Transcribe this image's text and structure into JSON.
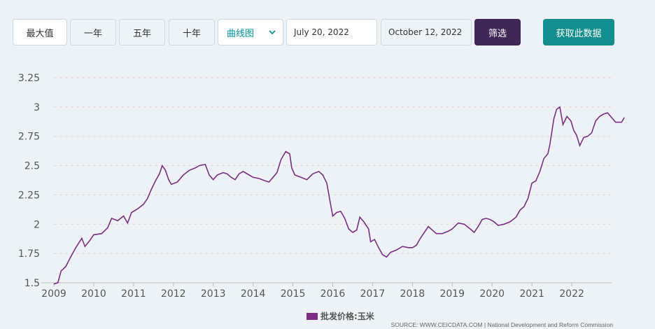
{
  "toolbar": {
    "range_buttons": [
      "最大值",
      "一年",
      "五年",
      "十年"
    ],
    "chart_type_select": "曲线图",
    "start_date": "July 20, 2022",
    "end_date": "October 12, 2022",
    "filter_label": "筛选",
    "get_data_label": "获取此数据"
  },
  "source": "SOURCE: WWW.CEICDATA.COM | National Development and Reform Commission",
  "colors": {
    "line": "#7b2e83",
    "grid": "#e6cfd8",
    "axis_text": "#555555"
  },
  "chart_data": {
    "type": "line",
    "title": "",
    "xlabel": "",
    "ylabel": "",
    "ylim": [
      1.5,
      3.25
    ],
    "yticks": [
      "1.5",
      "1.75",
      "2",
      "2.25",
      "2.5",
      "2.75",
      "3",
      "3.25"
    ],
    "xticks": [
      "2009",
      "2010",
      "2011",
      "2012",
      "2013",
      "2014",
      "2015",
      "2016",
      "2017",
      "2018",
      "2019",
      "2020",
      "2021",
      "2022"
    ],
    "xlim": [
      2009.0,
      2023.0
    ],
    "grid": true,
    "legend": "bottom-center",
    "series": [
      {
        "name": "批发价格:玉米",
        "points": [
          [
            2009.0,
            1.49
          ],
          [
            2009.1,
            1.5
          ],
          [
            2009.18,
            1.6
          ],
          [
            2009.3,
            1.64
          ],
          [
            2009.42,
            1.72
          ],
          [
            2009.55,
            1.8
          ],
          [
            2009.7,
            1.88
          ],
          [
            2009.78,
            1.81
          ],
          [
            2009.9,
            1.86
          ],
          [
            2010.0,
            1.91
          ],
          [
            2010.2,
            1.92
          ],
          [
            2010.35,
            1.97
          ],
          [
            2010.45,
            2.05
          ],
          [
            2010.6,
            2.03
          ],
          [
            2010.75,
            2.07
          ],
          [
            2010.85,
            2.01
          ],
          [
            2010.95,
            2.1
          ],
          [
            2011.1,
            2.13
          ],
          [
            2011.25,
            2.17
          ],
          [
            2011.35,
            2.22
          ],
          [
            2011.45,
            2.3
          ],
          [
            2011.55,
            2.37
          ],
          [
            2011.65,
            2.43
          ],
          [
            2011.72,
            2.5
          ],
          [
            2011.8,
            2.46
          ],
          [
            2011.88,
            2.38
          ],
          [
            2011.95,
            2.34
          ],
          [
            2012.1,
            2.36
          ],
          [
            2012.25,
            2.42
          ],
          [
            2012.4,
            2.46
          ],
          [
            2012.55,
            2.48
          ],
          [
            2012.65,
            2.5
          ],
          [
            2012.8,
            2.51
          ],
          [
            2012.9,
            2.42
          ],
          [
            2013.0,
            2.38
          ],
          [
            2013.1,
            2.42
          ],
          [
            2013.25,
            2.44
          ],
          [
            2013.35,
            2.43
          ],
          [
            2013.45,
            2.4
          ],
          [
            2013.55,
            2.38
          ],
          [
            2013.65,
            2.43
          ],
          [
            2013.75,
            2.45
          ],
          [
            2013.9,
            2.42
          ],
          [
            2014.0,
            2.4
          ],
          [
            2014.15,
            2.39
          ],
          [
            2014.3,
            2.37
          ],
          [
            2014.4,
            2.36
          ],
          [
            2014.5,
            2.4
          ],
          [
            2014.6,
            2.44
          ],
          [
            2014.7,
            2.55
          ],
          [
            2014.82,
            2.62
          ],
          [
            2014.92,
            2.6
          ],
          [
            2014.97,
            2.48
          ],
          [
            2015.05,
            2.42
          ],
          [
            2015.2,
            2.4
          ],
          [
            2015.35,
            2.38
          ],
          [
            2015.5,
            2.43
          ],
          [
            2015.65,
            2.45
          ],
          [
            2015.75,
            2.42
          ],
          [
            2015.85,
            2.35
          ],
          [
            2015.93,
            2.2
          ],
          [
            2016.0,
            2.07
          ],
          [
            2016.1,
            2.1
          ],
          [
            2016.2,
            2.11
          ],
          [
            2016.3,
            2.05
          ],
          [
            2016.4,
            1.96
          ],
          [
            2016.5,
            1.93
          ],
          [
            2016.6,
            1.95
          ],
          [
            2016.68,
            2.06
          ],
          [
            2016.78,
            2.02
          ],
          [
            2016.9,
            1.96
          ],
          [
            2016.95,
            1.85
          ],
          [
            2017.05,
            1.87
          ],
          [
            2017.15,
            1.8
          ],
          [
            2017.25,
            1.74
          ],
          [
            2017.35,
            1.72
          ],
          [
            2017.45,
            1.76
          ],
          [
            2017.6,
            1.78
          ],
          [
            2017.75,
            1.81
          ],
          [
            2017.9,
            1.8
          ],
          [
            2018.0,
            1.8
          ],
          [
            2018.1,
            1.82
          ],
          [
            2018.2,
            1.88
          ],
          [
            2018.3,
            1.93
          ],
          [
            2018.4,
            1.98
          ],
          [
            2018.5,
            1.95
          ],
          [
            2018.6,
            1.92
          ],
          [
            2018.75,
            1.92
          ],
          [
            2018.9,
            1.94
          ],
          [
            2019.0,
            1.96
          ],
          [
            2019.15,
            2.01
          ],
          [
            2019.3,
            2.0
          ],
          [
            2019.45,
            1.96
          ],
          [
            2019.55,
            1.93
          ],
          [
            2019.65,
            1.98
          ],
          [
            2019.75,
            2.04
          ],
          [
            2019.85,
            2.05
          ],
          [
            2019.95,
            2.04
          ],
          [
            2020.05,
            2.02
          ],
          [
            2020.15,
            1.99
          ],
          [
            2020.3,
            2.0
          ],
          [
            2020.45,
            2.02
          ],
          [
            2020.6,
            2.06
          ],
          [
            2020.7,
            2.12
          ],
          [
            2020.8,
            2.15
          ],
          [
            2020.9,
            2.22
          ],
          [
            2021.0,
            2.35
          ],
          [
            2021.1,
            2.37
          ],
          [
            2021.2,
            2.45
          ],
          [
            2021.3,
            2.56
          ],
          [
            2021.4,
            2.6
          ],
          [
            2021.45,
            2.68
          ],
          [
            2021.55,
            2.9
          ],
          [
            2021.62,
            2.98
          ],
          [
            2021.7,
            3.0
          ],
          [
            2021.78,
            2.85
          ],
          [
            2021.88,
            2.92
          ],
          [
            2021.98,
            2.88
          ],
          [
            2022.05,
            2.8
          ],
          [
            2022.12,
            2.76
          ],
          [
            2022.2,
            2.67
          ],
          [
            2022.3,
            2.74
          ],
          [
            2022.4,
            2.75
          ],
          [
            2022.5,
            2.78
          ],
          [
            2022.6,
            2.88
          ],
          [
            2022.7,
            2.92
          ],
          [
            2022.8,
            2.94
          ],
          [
            2022.9,
            2.95
          ],
          [
            2023.0,
            2.91
          ],
          [
            2023.1,
            2.87
          ],
          [
            2023.25,
            2.87
          ],
          [
            2023.32,
            2.91
          ]
        ]
      }
    ]
  }
}
